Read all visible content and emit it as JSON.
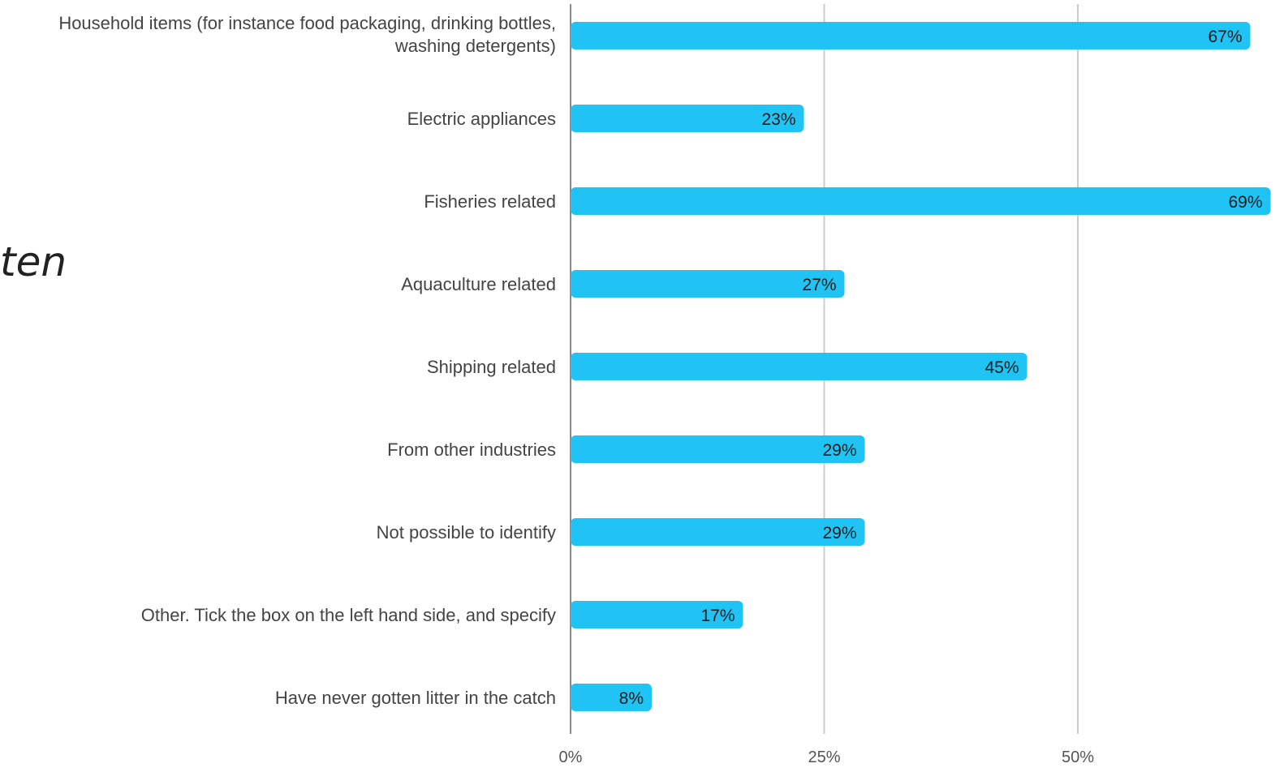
{
  "side_text": "ten",
  "chart_data": {
    "type": "bar",
    "orientation": "horizontal",
    "categories": [
      [
        "Household items (for instance food packaging, drinking bottles,",
        "washing detergents)"
      ],
      [
        "Electric appliances"
      ],
      [
        "Fisheries related"
      ],
      [
        "Aquaculture related"
      ],
      [
        "Shipping related"
      ],
      [
        "From other industries"
      ],
      [
        "Not possible to identify"
      ],
      [
        "Other. Tick the box on the left hand side, and specify"
      ],
      [
        "Have never gotten litter in the catch"
      ]
    ],
    "values": [
      67,
      23,
      69,
      27,
      45,
      29,
      29,
      17,
      8
    ],
    "value_labels": [
      "67%",
      "23%",
      "69%",
      "27%",
      "45%",
      "29%",
      "29%",
      "17%",
      "8%"
    ],
    "x_ticks": [
      0,
      25,
      50
    ],
    "x_tick_labels": [
      "0%",
      "25%",
      "50%"
    ],
    "xlim": [
      0,
      69
    ],
    "grid": true,
    "bar_color": "#20c4f4",
    "grid_color": "#cccccc",
    "axis_color": "#888888"
  }
}
